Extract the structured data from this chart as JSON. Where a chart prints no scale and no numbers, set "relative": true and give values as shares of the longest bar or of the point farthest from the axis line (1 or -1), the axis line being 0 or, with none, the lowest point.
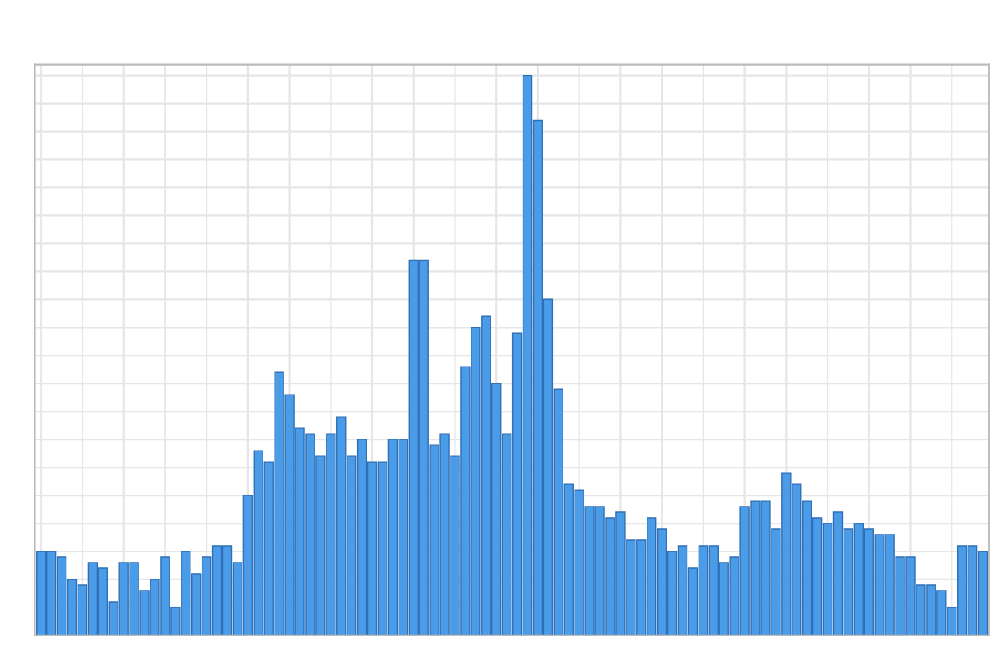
{
  "chart_data": {
    "type": "bar",
    "relative": true,
    "grid": true,
    "color": "#4a9be8",
    "categories": [
      null,
      null,
      null,
      null,
      null,
      null,
      null,
      null,
      null,
      null,
      null,
      null,
      null,
      null,
      null,
      null,
      null,
      null,
      null,
      null,
      null,
      null,
      null,
      null,
      null,
      null,
      null,
      null,
      null,
      null,
      null,
      null,
      null,
      null,
      null,
      null,
      null,
      null,
      null,
      null,
      null,
      null,
      null,
      null,
      null,
      null,
      null,
      null,
      null,
      null,
      null,
      null,
      null,
      null,
      null,
      null,
      null,
      null,
      null,
      null,
      null,
      null,
      null,
      null,
      null,
      null,
      null,
      null,
      null,
      null,
      null,
      null,
      null,
      null,
      null,
      null,
      null,
      null,
      null,
      null,
      null,
      null,
      null,
      null,
      null,
      null,
      null,
      null,
      null,
      null,
      null,
      null
    ],
    "values": [
      0.15,
      0.15,
      0.14,
      0.1,
      0.09,
      0.13,
      0.12,
      0.06,
      0.13,
      0.13,
      0.08,
      0.1,
      0.14,
      0.05,
      0.15,
      0.11,
      0.14,
      0.16,
      0.16,
      0.13,
      0.25,
      0.33,
      0.31,
      0.47,
      0.43,
      0.37,
      0.36,
      0.32,
      0.36,
      0.39,
      0.32,
      0.35,
      0.31,
      0.31,
      0.35,
      0.35,
      0.67,
      0.67,
      0.34,
      0.36,
      0.32,
      0.48,
      0.55,
      0.57,
      0.45,
      0.36,
      0.54,
      1.0,
      0.92,
      0.6,
      0.44,
      0.27,
      0.26,
      0.23,
      0.23,
      0.21,
      0.22,
      0.17,
      0.17,
      0.21,
      0.19,
      0.15,
      0.16,
      0.12,
      0.16,
      0.16,
      0.13,
      0.14,
      0.23,
      0.24,
      0.24,
      0.19,
      0.29,
      0.27,
      0.24,
      0.21,
      0.2,
      0.22,
      0.19,
      0.2,
      0.19,
      0.18,
      0.18,
      0.14,
      0.14,
      0.09,
      0.09,
      0.08,
      0.05,
      0.16,
      0.16,
      0.15
    ]
  }
}
